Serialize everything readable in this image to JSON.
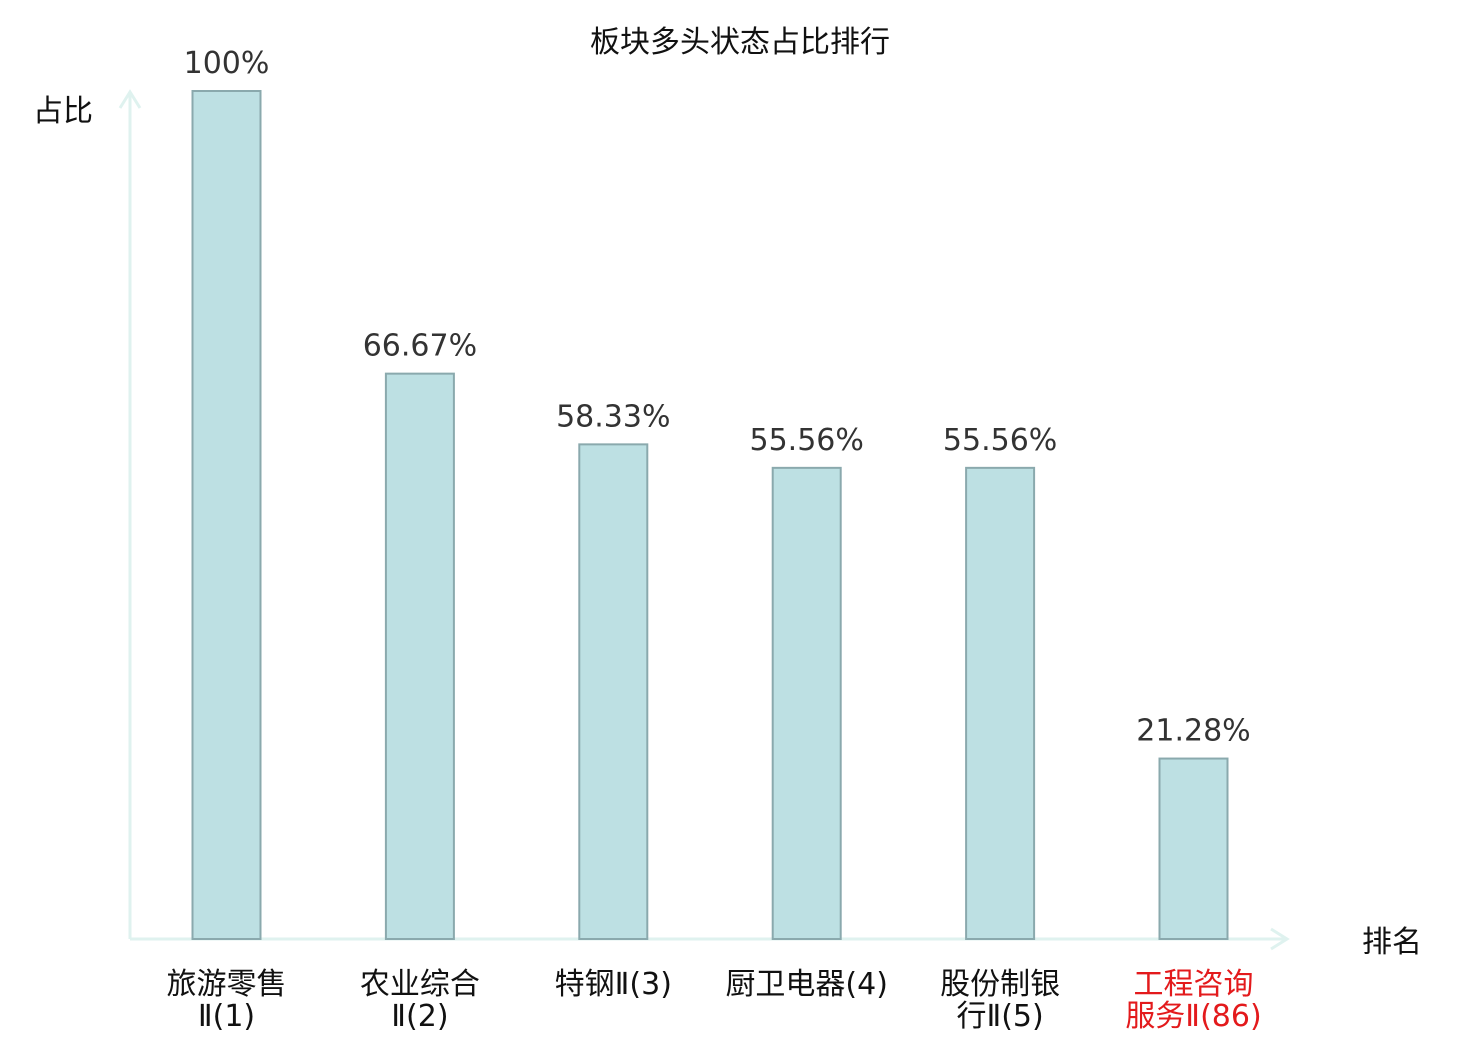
{
  "chart_data": {
    "type": "bar",
    "title": "板块多头状态占比排行",
    "ylabel": "占比",
    "xlabel": "排名",
    "ylim": [
      0,
      100
    ],
    "grid": false,
    "legend": "none",
    "bar_fill": "#bde0e3",
    "bar_stroke": "#8aa9ad",
    "axis_color": "#dff2ef",
    "highlight_color": "#e31a1c",
    "default_label_color": "#111111",
    "categories": [
      {
        "line1": "旅游零售",
        "line2": "Ⅱ(1)",
        "highlight": false
      },
      {
        "line1": "农业综合",
        "line2": "Ⅱ(2)",
        "highlight": false
      },
      {
        "line1": "特钢Ⅱ(3)",
        "line2": "",
        "highlight": false
      },
      {
        "line1": "厨卫电器(4)",
        "line2": "",
        "highlight": false
      },
      {
        "line1": "股份制银",
        "line2": "行Ⅱ(5)",
        "highlight": false
      },
      {
        "line1": "工程咨询",
        "line2": "服务Ⅱ(86)",
        "highlight": true
      }
    ],
    "values": [
      100,
      66.67,
      58.33,
      55.56,
      55.56,
      21.28
    ],
    "value_labels": [
      "100%",
      "66.67%",
      "58.33%",
      "55.56%",
      "55.56%",
      "21.28%"
    ]
  }
}
